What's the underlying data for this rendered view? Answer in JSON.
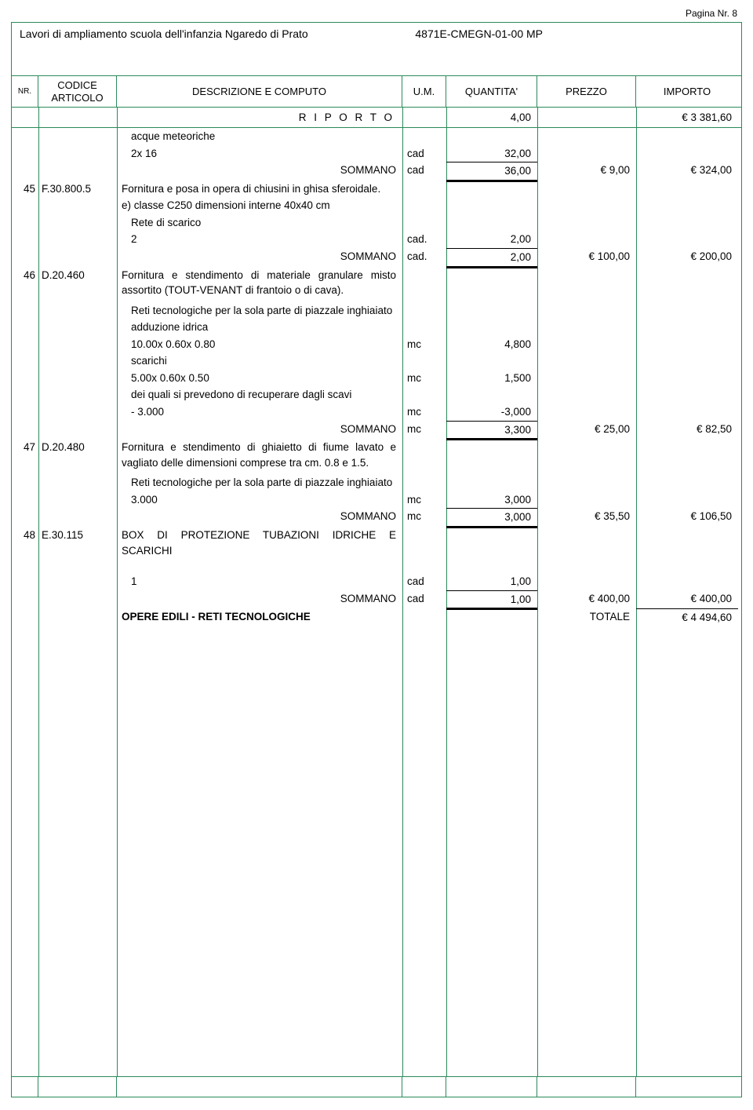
{
  "page_number_label": "Pagina Nr. 8",
  "project_title": "Lavori di ampliamento scuola dell'infanzia Ngaredo di Prato",
  "doc_code": "4871E-CMEGN-01-00 MP",
  "headers": {
    "nr": "NR.",
    "code": "CODICE ARTICOLO",
    "desc": "DESCRIZIONE E COMPUTO",
    "um": "U.M.",
    "qty": "QUANTITA'",
    "price": "PREZZO",
    "imp": "IMPORTO"
  },
  "riporto": {
    "label": "R I P O R T O",
    "qty": "4,00",
    "imp": "€ 3 381,60"
  },
  "colors": {
    "border": "#2a8a5a",
    "text": "#000000",
    "background": "#ffffff"
  },
  "rows": [
    {
      "desc": "acque meteoriche",
      "indent": true
    },
    {
      "desc": "2x 16",
      "indent": true,
      "um": "cad",
      "qty": "32,00"
    },
    {
      "desc": "SOMMANO",
      "right": true,
      "um": "cad",
      "qty": "36,00",
      "price": "€ 9,00",
      "imp": "€ 324,00",
      "sum": true
    },
    {
      "nr": "45",
      "code": "F.30.800.5",
      "desc": "Fornitura e posa in opera di chiusini in ghisa sferoidale.",
      "justify": true,
      "blankqty": true
    },
    {
      "desc": "e) classe C250 dimensioni interne 40x40 cm"
    },
    {
      "desc": "Rete di scarico",
      "indent": true
    },
    {
      "desc": "2",
      "indent": true,
      "um": "cad.",
      "qty": "2,00"
    },
    {
      "desc": "SOMMANO",
      "right": true,
      "um": "cad.",
      "qty": "2,00",
      "price": "€ 100,00",
      "imp": "€ 200,00",
      "sum": true
    },
    {
      "nr": "46",
      "code": "D.20.460",
      "desc": "Fornitura e stendimento di materiale granulare misto assortito (TOUT-VENANT di frantoio o di cava).",
      "justify": true,
      "blankqty": true
    },
    {
      "spacer": 6
    },
    {
      "desc": "Reti tecnologiche per la sola parte di piazzale inghiaiato",
      "indent": true
    },
    {
      "desc": "adduzione idrica",
      "indent": true
    },
    {
      "desc": "10.00x 0.60x 0.80",
      "indent": true,
      "um": "mc",
      "qty": "4,800"
    },
    {
      "desc": "scarichi",
      "indent": true
    },
    {
      "desc": "5.00x 0.60x 0.50",
      "indent": true,
      "um": "mc",
      "qty": "1,500"
    },
    {
      "desc": "dei quali si prevedono di recuperare dagli scavi",
      "indent": true
    },
    {
      "desc": "- 3.000",
      "indent": true,
      "um": "mc",
      "qty": "-3,000"
    },
    {
      "desc": "SOMMANO",
      "right": true,
      "um": "mc",
      "qty": "3,300",
      "price": "€ 25,00",
      "imp": "€ 82,50",
      "sum": true
    },
    {
      "nr": "47",
      "code": "D.20.480",
      "desc": "Fornitura e stendimento di ghiaietto di fiume lavato e vagliato delle dimensioni comprese tra cm. 0.8 e 1.5.",
      "justify": true,
      "blankqty": true
    },
    {
      "spacer": 6
    },
    {
      "desc": "Reti tecnologiche per la sola parte di piazzale inghiaiato",
      "indent": true
    },
    {
      "desc": "3.000",
      "indent": true,
      "um": "mc",
      "qty": "3,000"
    },
    {
      "desc": "SOMMANO",
      "right": true,
      "um": "mc",
      "qty": "3,000",
      "price": "€ 35,50",
      "imp": "€ 106,50",
      "sum": true
    },
    {
      "nr": "48",
      "code": "E.30.115",
      "desc": "BOX DI PROTEZIONE TUBAZIONI IDRICHE E SCARICHI",
      "justify": true,
      "blankqty": true
    },
    {
      "spacer": 18
    },
    {
      "desc": "1",
      "indent": true,
      "um": "cad",
      "qty": "1,00"
    },
    {
      "desc": "SOMMANO",
      "right": true,
      "um": "cad",
      "qty": "1,00",
      "price": "€ 400,00",
      "imp": "€ 400,00",
      "sum": true
    },
    {
      "desc": "OPERE EDILI - RETI TECNOLOGICHE",
      "bold": true,
      "price": "TOTALE",
      "imp": "€ 4 494,60",
      "impTop": true
    }
  ]
}
